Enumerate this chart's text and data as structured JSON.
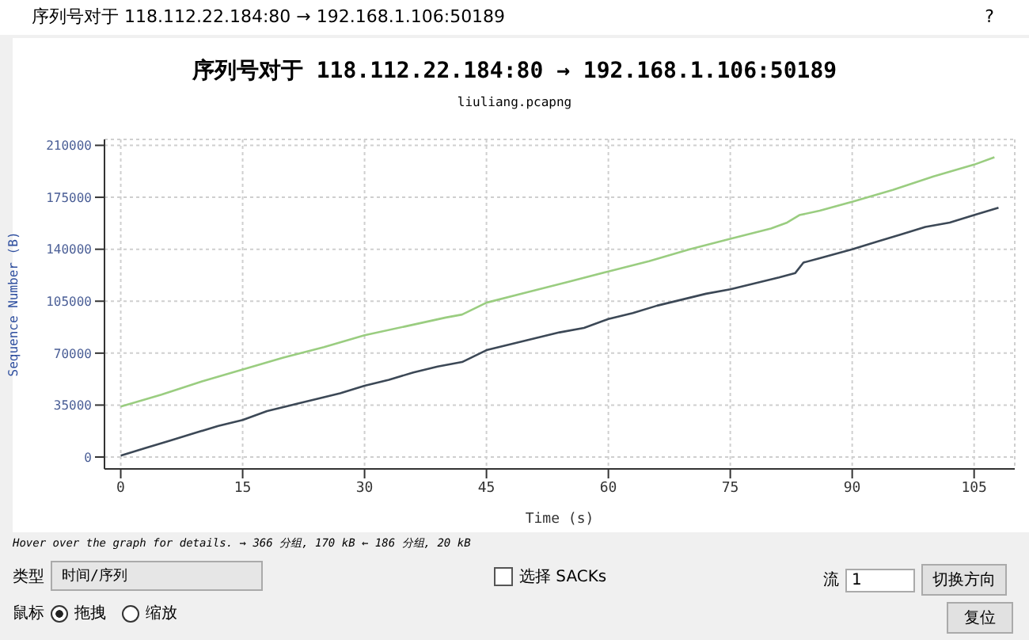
{
  "chart_data": {
    "type": "line",
    "title": "序列号对于 118.112.22.184:80 → 192.168.1.106:50189",
    "subtitle": "liuliang.pcapng",
    "xlabel": "Time (s)",
    "ylabel": "Sequence Number (B)",
    "xlim": [
      -2,
      110
    ],
    "xticks": [
      0,
      15,
      30,
      45,
      60,
      75,
      90,
      105
    ],
    "ylim": [
      -8000,
      214000
    ],
    "yticks": [
      0,
      35000,
      70000,
      105000,
      140000,
      175000,
      210000
    ],
    "grid": true,
    "legend": false,
    "series": [
      {
        "color": "#3c4856",
        "x": [
          0,
          3,
          6,
          9,
          12,
          15,
          18,
          21,
          24,
          27,
          30,
          33,
          36,
          39,
          42,
          45,
          48,
          51,
          54,
          57,
          60,
          63,
          66,
          69,
          72,
          75,
          78,
          81,
          83,
          84,
          86,
          90,
          93,
          96,
          99,
          102,
          105,
          108
        ],
        "values": [
          1000,
          6000,
          11000,
          16000,
          21000,
          25000,
          31000,
          35000,
          39000,
          43000,
          48000,
          52000,
          57000,
          61000,
          64000,
          72000,
          76000,
          80000,
          84000,
          87000,
          93000,
          97000,
          102000,
          106000,
          110000,
          113000,
          117000,
          121000,
          124000,
          131000,
          134000,
          140000,
          145000,
          150000,
          155000,
          158000,
          163000,
          168000
        ]
      },
      {
        "color": "#9acd80",
        "x": [
          0,
          5,
          10,
          15,
          20,
          25,
          30,
          35,
          40,
          42,
          45,
          50,
          55,
          60,
          65,
          70,
          75,
          80,
          82,
          83.5,
          86,
          90,
          95,
          100,
          105,
          107.5
        ],
        "values": [
          34000,
          42000,
          51000,
          59000,
          67000,
          74000,
          82000,
          88000,
          94000,
          96000,
          104000,
          111000,
          118000,
          125000,
          132000,
          140000,
          147000,
          154000,
          158000,
          163000,
          166000,
          172000,
          180000,
          189000,
          197000,
          202000
        ]
      }
    ],
    "annotations": [
      "Hover over the graph for details. → 366 分组, 170 kB ← 186 分组, 20 kB",
      "类型",
      "时间/序列",
      "选择 SACKs",
      "流",
      "1",
      "切换方向",
      "鼠标",
      "拖拽",
      "缩放",
      "复位",
      "?"
    ]
  }
}
